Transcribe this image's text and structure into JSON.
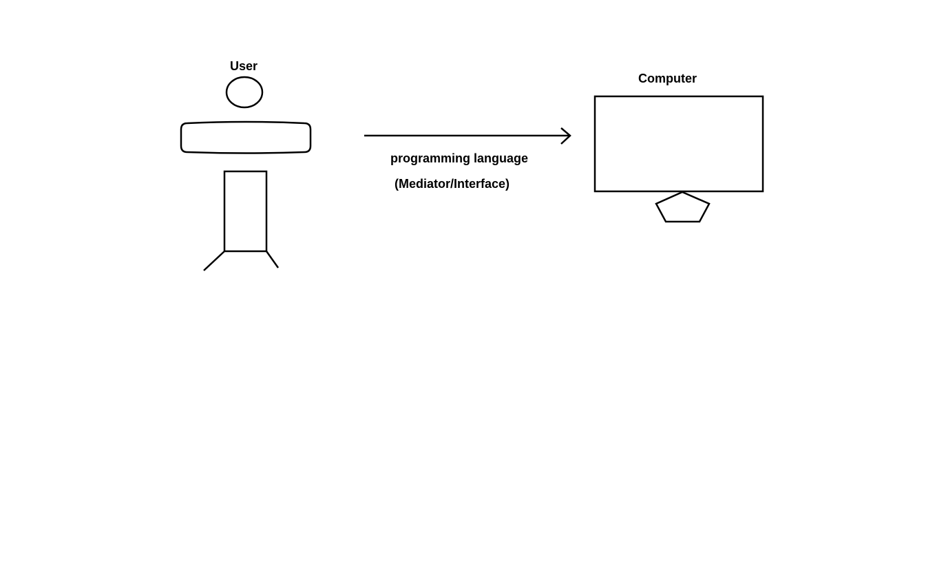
{
  "diagram": {
    "user_label": "User",
    "computer_label": "Computer",
    "arrow_label_line1": "programming language",
    "arrow_label_line2": "(Mediator/Interface)",
    "stroke_color": "#000000",
    "background_color": "#ffffff",
    "arrow": {
      "from": "User",
      "to": "Computer"
    }
  }
}
